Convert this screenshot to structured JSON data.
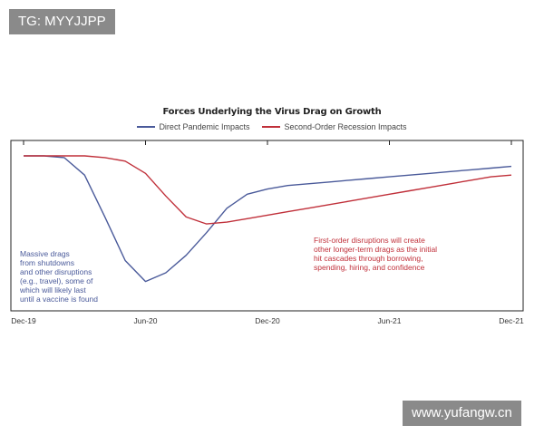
{
  "watermarks": {
    "top": "TG: MYYJJPP",
    "bottom": "www.yufangw.cn"
  },
  "colors": {
    "direct": "#4a5a9a",
    "second": "#c0303a",
    "frame": "#222222"
  },
  "chart_data": {
    "type": "line",
    "title": "Forces Underlying the Virus Drag on Growth",
    "xlabel": "",
    "ylabel": "",
    "x_ticks": [
      "Dec-19",
      "Jun-20",
      "Dec-20",
      "Jun-21",
      "Dec-21"
    ],
    "x_tick_positions": [
      0,
      6,
      12,
      18,
      24
    ],
    "xlim": [
      0,
      24
    ],
    "ylim": [
      -8,
      0
    ],
    "y_axis_labeled": false,
    "grid": false,
    "legend_position": "top-center",
    "series": [
      {
        "name": "Direct Pandemic Impacts",
        "color": "#4a5a9a",
        "x": [
          0,
          1,
          2,
          3,
          4,
          5,
          6,
          7,
          8,
          9,
          10,
          11,
          12,
          13,
          14,
          15,
          16,
          17,
          18,
          19,
          20,
          21,
          22,
          23,
          24
        ],
        "y": [
          0,
          0,
          -0.1,
          -1.1,
          -3.5,
          -6.0,
          -7.2,
          -6.7,
          -5.7,
          -4.4,
          -3.0,
          -2.2,
          -1.9,
          -1.7,
          -1.6,
          -1.5,
          -1.4,
          -1.3,
          -1.2,
          -1.1,
          -1.0,
          -0.9,
          -0.8,
          -0.7,
          -0.6
        ]
      },
      {
        "name": "Second-Order Recession Impacts",
        "color": "#c0303a",
        "x": [
          0,
          1,
          2,
          3,
          4,
          5,
          6,
          7,
          8,
          9,
          10,
          11,
          12,
          13,
          14,
          15,
          16,
          17,
          18,
          19,
          20,
          21,
          22,
          23,
          24
        ],
        "y": [
          0,
          0,
          0,
          0,
          -0.1,
          -0.3,
          -1.0,
          -2.3,
          -3.5,
          -3.9,
          -3.8,
          -3.6,
          -3.4,
          -3.2,
          -3.0,
          -2.8,
          -2.6,
          -2.4,
          -2.2,
          -2.0,
          -1.8,
          -1.6,
          -1.4,
          -1.2,
          -1.1
        ]
      }
    ],
    "annotations": [
      {
        "series": "Direct Pandemic Impacts",
        "lines": [
          "Massive drags",
          "from shutdowns",
          "and other disruptions",
          "(e.g., travel), some of",
          "which will likely last",
          "until a vaccine is found"
        ]
      },
      {
        "series": "Second-Order Recession Impacts",
        "lines": [
          "First-order disruptions will create",
          "other longer-term drags as the initial",
          "hit cascades through borrowing,",
          "spending, hiring, and confidence"
        ]
      }
    ]
  }
}
